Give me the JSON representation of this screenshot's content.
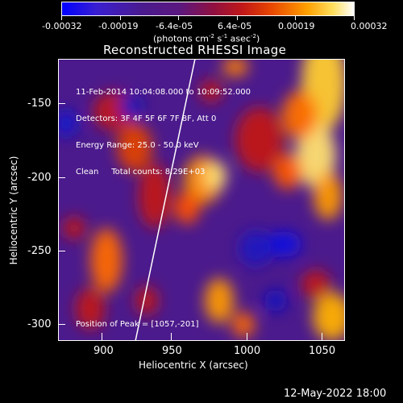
{
  "colorbar": {
    "tick_labels": [
      "-0.00032",
      "-0.00019",
      "-6.4e-05",
      "6.4e-05",
      "0.00019",
      "0.00032"
    ],
    "units": "(photons cm",
    "units_sup1": "-2",
    "units_mid": " s",
    "units_sup2": "-1",
    "units_mid2": " asec",
    "units_sup3": "-2",
    "units_end": ")"
  },
  "title": "Reconstructed RHESSI Image",
  "overlay": {
    "line1": "11-Feb-2014 10:04:08.000 to 10:09:52.000",
    "line2": "Detectors: 3F 4F 5F 6F 7F 8F, Att 0",
    "line3": "Energy Range: 25.0 - 50.0 keV",
    "line4": "Clean     Total counts: 8.29E+03",
    "peak": "Position of Peak = [1057,-201]"
  },
  "x_axis": {
    "label": "Heliocentric X (arcsec)",
    "ticks": [
      "900",
      "950",
      "1000",
      "1050"
    ]
  },
  "y_axis": {
    "label": "Heliocentric Y (arcsec)",
    "ticks": [
      "-150",
      "-200",
      "-250",
      "-300"
    ]
  },
  "footer_date": "12-May-2022 18:00"
}
